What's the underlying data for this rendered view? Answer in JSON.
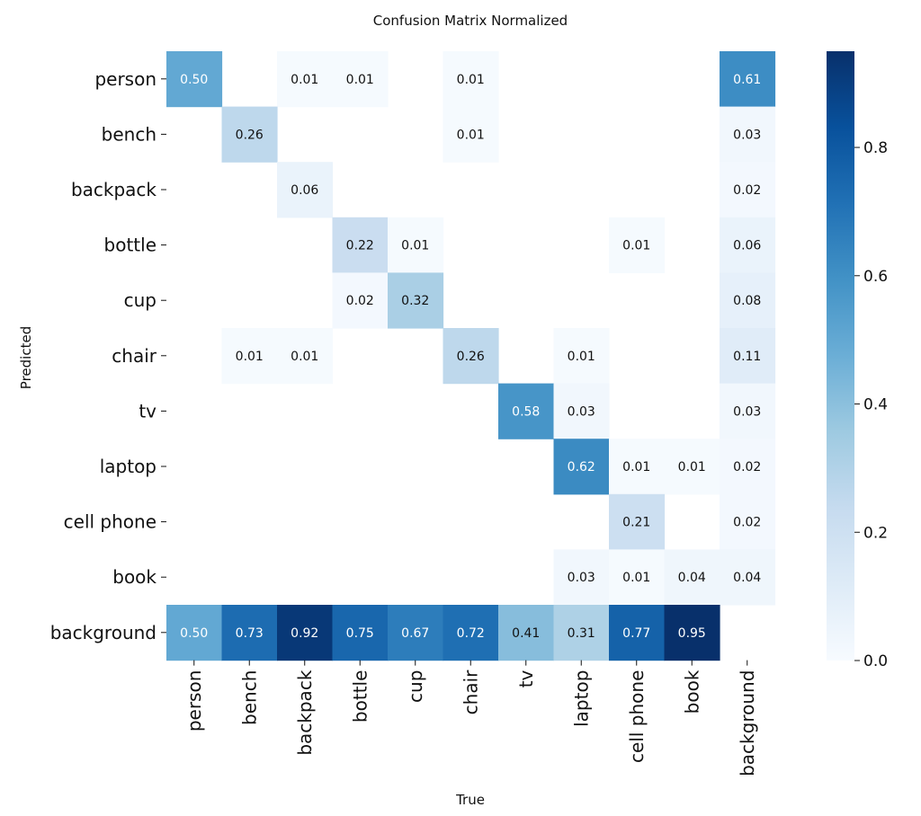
{
  "chart_data": {
    "type": "heatmap",
    "title": "Confusion Matrix Normalized",
    "xlabel": "True",
    "ylabel": "Predicted",
    "x_categories": [
      "person",
      "bench",
      "backpack",
      "bottle",
      "cup",
      "chair",
      "tv",
      "laptop",
      "cell phone",
      "book",
      "background"
    ],
    "y_categories": [
      "person",
      "bench",
      "backpack",
      "bottle",
      "cup",
      "chair",
      "tv",
      "laptop",
      "cell phone",
      "book",
      "background"
    ],
    "matrix": [
      [
        0.5,
        null,
        0.01,
        0.01,
        null,
        0.01,
        null,
        null,
        null,
        null,
        0.61
      ],
      [
        null,
        0.26,
        null,
        null,
        null,
        0.01,
        null,
        null,
        null,
        null,
        0.03
      ],
      [
        null,
        null,
        0.06,
        null,
        null,
        null,
        null,
        null,
        null,
        null,
        0.02
      ],
      [
        null,
        null,
        null,
        0.22,
        0.01,
        null,
        null,
        null,
        0.01,
        null,
        0.06
      ],
      [
        null,
        null,
        null,
        0.02,
        0.32,
        null,
        null,
        null,
        null,
        null,
        0.08
      ],
      [
        null,
        0.01,
        0.01,
        null,
        null,
        0.26,
        null,
        0.01,
        null,
        null,
        0.11
      ],
      [
        null,
        null,
        null,
        null,
        null,
        null,
        0.58,
        0.03,
        null,
        null,
        0.03
      ],
      [
        null,
        null,
        null,
        null,
        null,
        null,
        null,
        0.62,
        0.01,
        0.01,
        0.02
      ],
      [
        null,
        null,
        null,
        null,
        null,
        null,
        null,
        null,
        0.21,
        null,
        0.02
      ],
      [
        null,
        null,
        null,
        null,
        null,
        null,
        null,
        0.03,
        0.01,
        0.04,
        0.04
      ],
      [
        0.5,
        0.73,
        0.92,
        0.75,
        0.67,
        0.72,
        0.41,
        0.31,
        0.77,
        0.95,
        null
      ]
    ],
    "colorbar": {
      "min": 0.0,
      "max": 0.95,
      "ticks": [
        0.0,
        0.2,
        0.4,
        0.6,
        0.8
      ],
      "tick_labels": [
        "0.0",
        "0.2",
        "0.4",
        "0.6",
        "0.8"
      ],
      "colormap": "Blues"
    }
  }
}
